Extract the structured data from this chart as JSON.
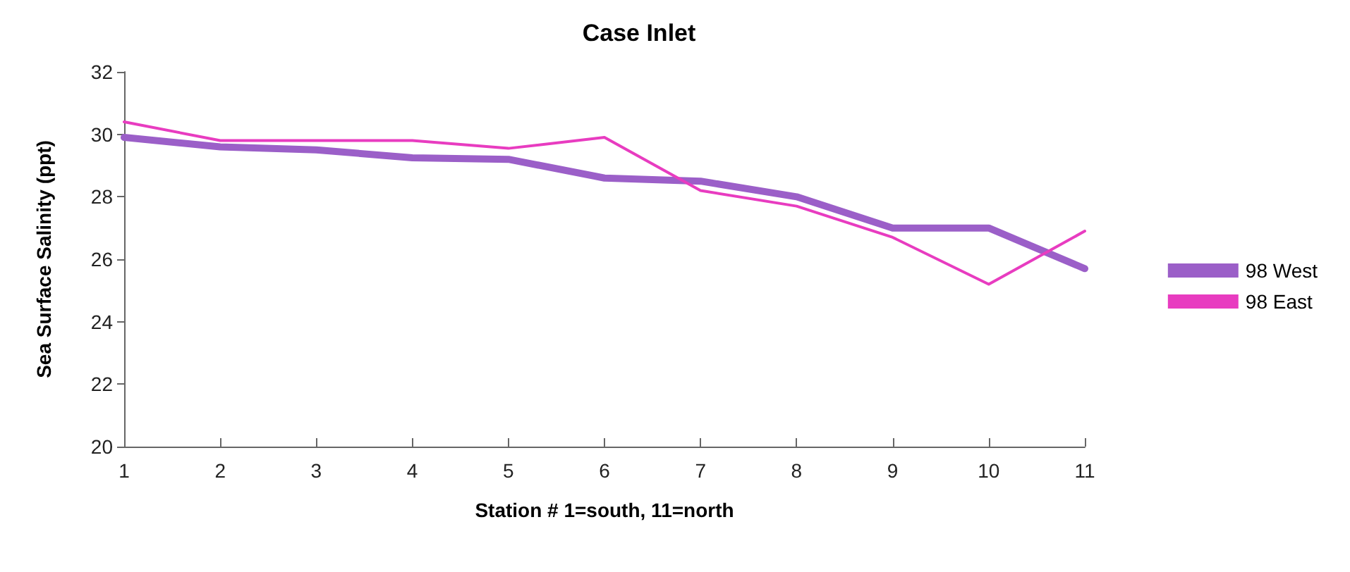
{
  "chart_data": {
    "type": "line",
    "title": "Case Inlet",
    "xlabel": "Station # 1=south, 11=north",
    "ylabel": "Sea Surface Salinity (ppt)",
    "categories": [
      "1",
      "2",
      "3",
      "4",
      "5",
      "6",
      "7",
      "8",
      "9",
      "10",
      "11"
    ],
    "series": [
      {
        "name": "98 West",
        "color": "#9b5fc8",
        "values": [
          29.9,
          29.6,
          29.5,
          29.25,
          29.2,
          28.6,
          28.5,
          28.0,
          27.0,
          27.0,
          25.7
        ]
      },
      {
        "name": "98 East",
        "color": "#e83cc0",
        "values": [
          30.4,
          29.8,
          29.8,
          29.8,
          29.55,
          29.9,
          28.2,
          27.7,
          26.7,
          25.2,
          26.9
        ]
      }
    ],
    "ylim": [
      20,
      32
    ],
    "yticks": [
      20,
      22,
      24,
      26,
      28,
      30,
      32
    ],
    "grid": false,
    "legend": "right",
    "marker": "none"
  }
}
